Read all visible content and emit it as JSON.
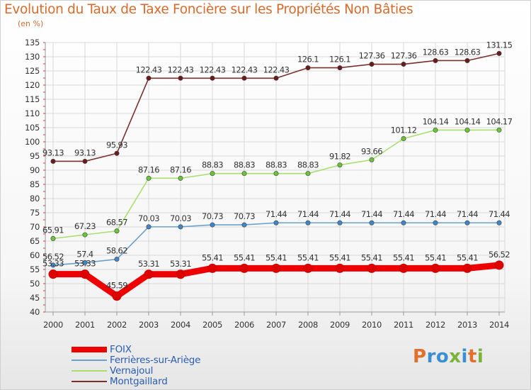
{
  "title": "Evolution du Taux de Taxe Foncière sur les Propriétés Non Bâties",
  "unit": "(en %)",
  "logo_text": "Proxiti",
  "logo_colors": [
    "#e0702c",
    "#3a8fd0",
    "#3a8fd0",
    "#7ab33a",
    "#3a8fd0",
    "#e0702c",
    "#7ab33a"
  ],
  "chart_data": {
    "type": "line",
    "x": [
      2000,
      2001,
      2002,
      2003,
      2004,
      2005,
      2006,
      2007,
      2008,
      2009,
      2010,
      2011,
      2012,
      2013,
      2014
    ],
    "ylim": [
      40,
      135
    ],
    "yticks": [
      40,
      45,
      50,
      55,
      60,
      65,
      70,
      75,
      80,
      85,
      90,
      95,
      100,
      105,
      110,
      115,
      120,
      125,
      130,
      135
    ],
    "grid": true,
    "series": [
      {
        "name": "Montgaillard",
        "color": "#7a2f2f",
        "marker": "#6a1a1a",
        "values": [
          93.13,
          93.13,
          95.93,
          122.43,
          122.43,
          122.43,
          122.43,
          122.43,
          126.1,
          126.1,
          127.36,
          127.36,
          128.63,
          128.63,
          131.15
        ],
        "labels": [
          "93.13",
          "93.13",
          "95.93",
          "122.43",
          "122.43",
          "122.43",
          "122.43",
          "122.43",
          "126.1",
          "126.1",
          "127.36",
          "127.36",
          "128.63",
          "128.63",
          "131.15"
        ]
      },
      {
        "name": "Vernajoul",
        "color": "#a8e070",
        "marker": "#6cc23a",
        "values": [
          65.91,
          67.23,
          68.57,
          87.16,
          87.16,
          88.83,
          88.83,
          88.83,
          88.83,
          91.82,
          93.66,
          101.12,
          104.14,
          104.14,
          104.17
        ],
        "labels": [
          "65.91",
          "67.23",
          "68.57",
          "87.16",
          "87.16",
          "88.83",
          "88.83",
          "88.83",
          "88.83",
          "91.82",
          "93.66",
          "101.12",
          "104.14",
          "104.14",
          "104.17"
        ]
      },
      {
        "name": "Ferrières-sur-Ariège",
        "color": "#6aa0cc",
        "marker": "#3f86c8",
        "values": [
          56.52,
          57.4,
          58.62,
          70.03,
          70.03,
          70.73,
          70.73,
          71.44,
          71.44,
          71.44,
          71.44,
          71.44,
          71.44,
          71.44,
          71.44
        ],
        "labels": [
          "56.52",
          "57.4",
          "58.62",
          "70.03",
          "70.03",
          "70.73",
          "70.73",
          "71.44",
          "71.44",
          "71.44",
          "71.44",
          "71.44",
          "71.44",
          "71.44",
          "71.44"
        ]
      },
      {
        "name": "FOIX",
        "color": "#ee0000",
        "marker": "#dd0000",
        "values": [
          53.33,
          53.33,
          45.59,
          53.31,
          53.31,
          55.41,
          55.41,
          55.41,
          55.41,
          55.41,
          55.41,
          55.41,
          55.41,
          55.41,
          56.52
        ],
        "labels": [
          "53.33",
          "53.33",
          "45.59",
          "53.31",
          "53.31",
          "55.41",
          "55.41",
          "55.41",
          "55.41",
          "55.41",
          "55.41",
          "55.41",
          "55.41",
          "55.41",
          "56.52"
        ]
      }
    ],
    "legend": [
      {
        "name": "FOIX",
        "color": "#ee0000"
      },
      {
        "name": "Ferrières-sur-Ariège",
        "color": "#6aa0cc"
      },
      {
        "name": "Vernajoul",
        "color": "#a8e070"
      },
      {
        "name": "Montgaillard",
        "color": "#7a2f2f"
      }
    ],
    "legend_position": "bottom-left"
  }
}
